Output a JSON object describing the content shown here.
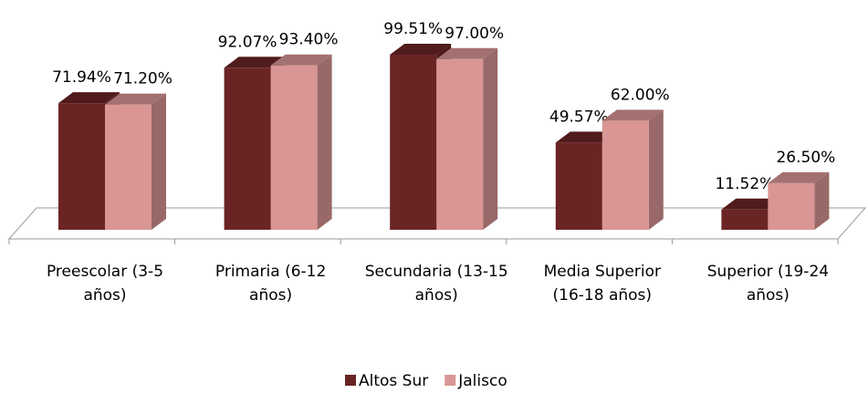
{
  "chart_data": {
    "type": "bar3d",
    "categories": [
      "Preescolar (3-5 años)",
      "Primaria (6-12 años)",
      "Secundaria (13-15 años)",
      "Media Superior (16-18 años)",
      "Superior (19-24 años)"
    ],
    "series": [
      {
        "name": "Altos Sur",
        "color": "#6b2424",
        "values": [
          71.94,
          92.07,
          99.51,
          49.57,
          11.52
        ],
        "value_labels": [
          "71.94%",
          "92.07%",
          "99.51%",
          "49.57%",
          "11.52%"
        ]
      },
      {
        "name": "Jalisco",
        "color": "#d99694",
        "values": [
          71.2,
          93.4,
          97,
          62,
          26.5
        ],
        "value_labels": [
          "71.20%",
          "93.40%",
          "97.00%",
          "62.00%",
          "26.50%"
        ]
      }
    ],
    "legend": "bottom"
  }
}
